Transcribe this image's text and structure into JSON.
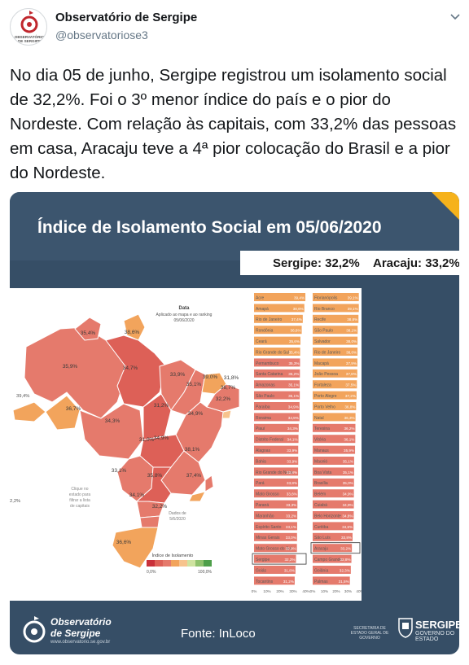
{
  "tweet": {
    "author_name": "Observatório de Sergipe",
    "author_handle": "@observatoriose3",
    "text": "No dia 05 de junho, Sergipe registrou um isolamento social de 32,2%. Foi o 3º menor índice do país e o pior do Nordeste. Com relação às capitais, com 33,2% das pessoas em casa, Aracaju teve a 4ª pior colocação do Brasil e a pior do Nordeste.",
    "avatar_text": [
      "OBSERVATÓRIO",
      "DE SERGIPE"
    ]
  },
  "card": {
    "title": "Índice de Isolamento Social em 05/06/2020",
    "stat_sergipe": "Sergipe: 32,2%",
    "stat_aracaju": "Aracaju: 33,2%",
    "footer_brand": [
      "Observatório",
      "de Sergipe"
    ],
    "footer_url": "www.observatorio.se.gov.br",
    "footer_source": "Fonte: InLoco",
    "secretaria": "SECRETARIA DE ESTADO GERAL DE GOVERNO",
    "sergipe_logo": "SERGIPE",
    "governo": "GOVERNO DO ESTADO"
  },
  "map": {
    "data_label": "Data",
    "data_note": [
      "Aplicado ao mapa e ao ranking",
      "05/06/2020"
    ],
    "click_note": [
      "Clique no",
      "estado para",
      "filtrar a lista",
      "de capitais"
    ],
    "dados_note": [
      "Dados de",
      "5/6/2020"
    ],
    "left_edge_value": "39,4%",
    "left_edge_value2": "2,2%",
    "legend_title": "Índice de Isolamento",
    "legend_min": "0,0%",
    "legend_max": "100,0%",
    "labels": [
      "35,4%",
      "38,6%",
      "35,9%",
      "34,7%",
      "33,9%",
      "39,0%",
      "31,8%",
      "35,1%",
      "36,7%",
      "32,2%",
      "36,7%",
      "31,2%",
      "34,3%",
      "31,0%",
      "34,9%",
      "34,9%",
      "38,1%",
      "33,1%",
      "35,8%",
      "37,4%",
      "34,1%",
      "32,2%",
      "36,6%"
    ],
    "colors": {
      "orange": "#f2a45c",
      "salmon": "#e57a6c",
      "red": "#dd6057",
      "light": "#f7c38d"
    }
  },
  "chart_data": [
    {
      "type": "bar",
      "title": "",
      "categories": [
        "Acre",
        "Amapá",
        "Rio de Janeiro",
        "Rondônia",
        "Ceará",
        "Rio Grande do Sul",
        "Pernambuco",
        "Santa Catarina",
        "Amazonas",
        "São Paulo",
        "Paraíba",
        "Roraima",
        "Piauí",
        "Distrito Federal",
        "Alagoas",
        "Bahia",
        "Rio Grande do Norte",
        "Pará",
        "Mato Grosso",
        "Paraná",
        "Maranhão",
        "Espírito Santo",
        "Minas Gerais",
        "Mato Grosso do Sul",
        "Sergipe",
        "Goiás",
        "Tocantins"
      ],
      "values": [
        39.4,
        38.6,
        37.4,
        36.6,
        35.6,
        35.4,
        35.3,
        35.2,
        35.1,
        35.1,
        34.9,
        34.9,
        34.3,
        34.1,
        33.9,
        33.9,
        33.8,
        33.8,
        33.6,
        33.3,
        33.2,
        33.1,
        33.0,
        32.9,
        32.2,
        31.8,
        31.2
      ],
      "value_labels": [
        "39,4%",
        "38,6%",
        "37,4%",
        "36,6%",
        "35,6%",
        "35,4%",
        "35,3%",
        "35,2%",
        "35,1%",
        "35,1%",
        "34,9%",
        "34,9%",
        "34,3%",
        "34,1%",
        "33,9%",
        "33,9%",
        "33,8%",
        "33,8%",
        "33,6%",
        "33,3%",
        "33,2%",
        "33,1%",
        "33,0%",
        "32,9%",
        "32,2%",
        "31,8%",
        "31,2%"
      ],
      "bar_colors": [
        "#f2a45c",
        "#f2a45c",
        "#f2a45c",
        "#f2a45c",
        "#f2a45c",
        "#f2a45c",
        "#e57a6c",
        "#e57a6c",
        "#e57a6c",
        "#e57a6c",
        "#e57a6c",
        "#e57a6c",
        "#e57a6c",
        "#e57a6c",
        "#e57a6c",
        "#e57a6c",
        "#e57a6c",
        "#e57a6c",
        "#e57a6c",
        "#e57a6c",
        "#e57a6c",
        "#e57a6c",
        "#e57a6c",
        "#e57a6c",
        "#e57a6c",
        "#e57a6c",
        "#e57a6c"
      ],
      "highlight": "Sergipe",
      "xlim": [
        0,
        40
      ],
      "x_ticks": [
        "0%",
        "10%",
        "20%",
        "30%",
        "40%"
      ]
    },
    {
      "type": "bar",
      "title": "",
      "categories": [
        "Florianópolis",
        "Rio Branco",
        "Recife",
        "São Paulo",
        "Salvador",
        "Rio de Janeiro",
        "Macapá",
        "João Pessoa",
        "Fortaleza",
        "Porto Alegre",
        "Porto Velho",
        "Natal",
        "Teresina",
        "Vitória",
        "Manaus",
        "Maceió",
        "Boa Vista",
        "Brasília",
        "Belém",
        "Cuiabá",
        "Belo Horizonte",
        "Curitiba",
        "São Luís",
        "Aracaju",
        "Campo Grande",
        "Goiânia",
        "Palmas"
      ],
      "values": [
        39.1,
        39.1,
        38.8,
        38.1,
        38.0,
        38.0,
        37.9,
        37.8,
        37.5,
        37.2,
        36.8,
        36.3,
        36.2,
        36.1,
        35.9,
        35.1,
        35.1,
        35.0,
        34.9,
        34.9,
        34.8,
        34.6,
        33.8,
        33.2,
        32.8,
        32.3,
        31.5
      ],
      "value_labels": [
        "39,1%",
        "39,1%",
        "38,8%",
        "38,1%",
        "38,0%",
        "38,0%",
        "37,9%",
        "37,8%",
        "37,5%",
        "37,2%",
        "36,8%",
        "36,3%",
        "36,2%",
        "36,1%",
        "35,9%",
        "35,1%",
        "35,1%",
        "35,0%",
        "34,9%",
        "34,9%",
        "34,8%",
        "34,6%",
        "33,8%",
        "33,2%",
        "32,8%",
        "32,3%",
        "31,5%"
      ],
      "bar_colors": [
        "#f2a45c",
        "#f2a45c",
        "#f2a45c",
        "#f2a45c",
        "#f2a45c",
        "#f2a45c",
        "#f2a45c",
        "#f2a45c",
        "#f2a45c",
        "#f2a45c",
        "#f2a45c",
        "#f2a45c",
        "#e57a6c",
        "#e57a6c",
        "#e57a6c",
        "#e57a6c",
        "#e57a6c",
        "#e57a6c",
        "#e57a6c",
        "#e57a6c",
        "#e57a6c",
        "#e57a6c",
        "#e57a6c",
        "#e57a6c",
        "#e57a6c",
        "#e57a6c",
        "#e57a6c"
      ],
      "highlight": "Aracaju",
      "xlim": [
        0,
        40
      ],
      "x_ticks": [
        "0%",
        "10%",
        "20%",
        "30%",
        "40%"
      ]
    }
  ]
}
